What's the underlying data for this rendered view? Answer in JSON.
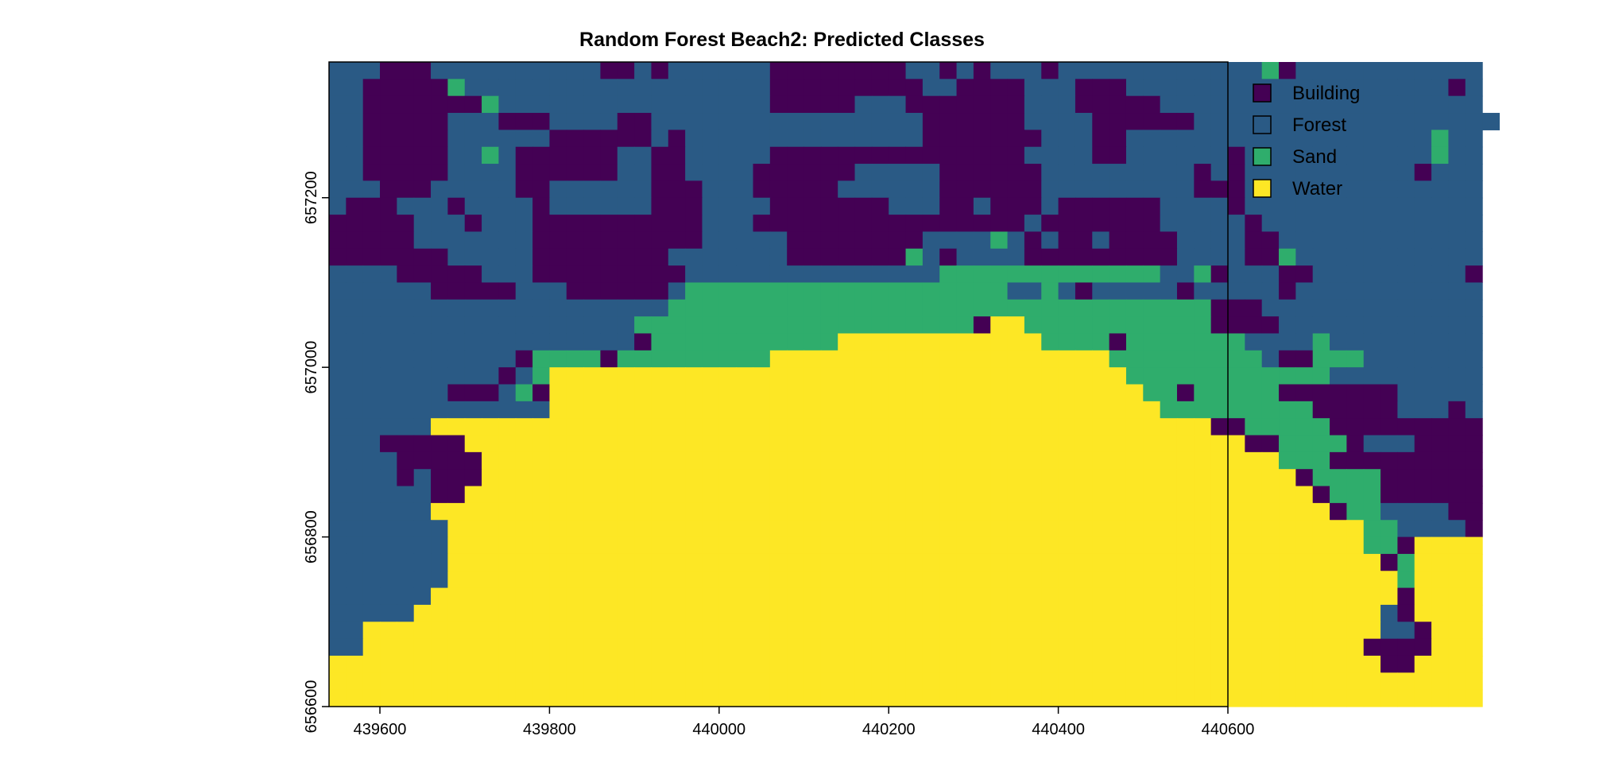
{
  "chart_data": {
    "type": "heatmap",
    "title": "Random Forest Beach2: Predicted Classes",
    "xlabel": "",
    "ylabel": "",
    "xlim": [
      439540,
      440600
    ],
    "ylim": [
      656600,
      657360
    ],
    "x_ticks": [
      "439600",
      "439800",
      "440000",
      "440200",
      "440400",
      "440600"
    ],
    "y_ticks": [
      "656600",
      "656800",
      "657000",
      "657200"
    ],
    "legend_position": "right",
    "cell_size": 20,
    "classes": [
      {
        "key": "B",
        "name": "Building",
        "color": "#440154"
      },
      {
        "key": "F",
        "name": "Forest",
        "color": "#2a5a85"
      },
      {
        "key": "S",
        "name": "Sand",
        "color": "#2fad6c"
      },
      {
        "key": "W",
        "name": "Water",
        "color": "#fde725"
      }
    ],
    "grid": [
      "FFFBBBFFFFFFFFFFBBFBFFFFFFBBBBBBBBFFBFBFFFBFFFFFFFFFFFFSBFFFFFFFFFFF",
      "FFBBBBBSFFFFFFFFFFFFFFFFFFBBBBBBBBBFFBBBBFFFBBBFFFFFFFFFFFFFFFFFFFBF",
      "FFBBBBBBBSFFFFFFFFFFFFFFFFBBBBBFFFBBBBBBBFFFBBBBBFFFFFFFFFFFFFFFFFFF",
      "FFBBBBBFFFBBBFFFFBBFFFFFFFFFFFFFFFFBBBBBBFFFFBBBBBBFFFFFFFFFFFFFFFFFF",
      "FFBBBBBFFFFFFBBBBBBFBFFFFFFFFFFFFFFBBBBBBBFFFBBFFFFFFFFFFFFFFFFFFSFF",
      "FFBBBBBFFSFBBBBBBFFBBFFFFFBBBBBBBBBBBBBBBFFFFBBFFFFFFBFFFFFFFFFFFSFF",
      "FFBBBBBFFFFBBBBBBFFBBFFFFBBBBBBFFFFFBBBBBBFFFFFFFFFBFBFFFFFFFFFFBFFF",
      "FFFBBBFFFFFBBFFFFFFBBBFFFBBBBBFFFFFFBBBBBBFFFFFFFFFBBBFFFFFFFFFFFFFF",
      "FBBBFFFBFFFFBFFFFFFBBBFFFFBBBBBBBFFFBBFBBBFBBBBBBFFFFBFFFFFFFFFFFFFF",
      "BBBBBFFFBFFFBBBBBBBBBBFFFBBBBBBBBBBBBBBBBFBBBBBBBFFFFFBFFFFFFFFFFFFF",
      "BBBBBFFFFFFFBBBBBBBBBBFFFFFBBBBBBBBFFFFSFBFBBFBBBBFFFFBBFFFFFFFFFFFF",
      "BBBBBBBFFFFFBBBBBBBBFFFFFFFBBBBBBBSFBFFFFBBBBBBBBBFFFFBBSFFFFFFFFFFF",
      "FFFFBBBBBFFFBBBBBBBBBFFFFFFFFFFFFFFFSSSSSSSSSSSSSFFSBFFFBBFFFFFFFFFB",
      "FFFFFFBBBBBFFFBBBBBBFSSSSSSSSSSSSSSSSSSSFFSFBFFFFFBFFFFFBFFFFFFFFFFF",
      "FFFFFFFFFFFFFFFFFFFFSSSSSSSSSSSSSSSSSSSSSSSSSSSSSSSSBBBFFFFFFFFFFFFF",
      "FFFFFFFFFFFFFFFFFFSSSSSSSSSSSSSSSSSSSSBWWSSSSSSSSSSSBBBBFFFFFFFFFFFF",
      "FFFFFFFFFFFFFFFFFFBSSSSSSSSSSSWWWWWWWWWWWWSSSSBSSSSSSSFFFFSFFFFFFFFF",
      "FFFFFFFFFFFBSSSSBSSSSSSSSSWWWWWWWWWWWWWWWWWWWWSSSSSSSSSFBBSSSFFFFFFF",
      "FFFFFFFFFFBFSWWWWWWWWWWWWWWWWWWWWWWWWWWWWWWWWWWSSSSSSSSSSSSFFFFFFFFF",
      "FFFFFFFBBBFSBWWWWWWWWWWWWWWWWWWWWWWWWWWWWWWWWWWWSSBSSSSSBBBBBBBFFFFF",
      "FFFFFFFFFFFFFWWWWWWWWWWWWWWWWWWWWWWWWWWWWWWWWWWWWSSSSSSSSSBBBBBFFFBF",
      "FFFFFFWWWWWWWWWWWWWWWWWWWWWWWWWWWWWWWWWWWWWWWWWWWWWWBBSSSSSBBBBBBBBB",
      "FFFBBBBBWWWWWWWWWWWWWWWWWWWWWWWWWWWWWWWWWWWWWWWWWWWWWWBBSSSSBFFFBBBB",
      "FFFFBBBBBWWWWWWWWWWWWWWWWWWWWWWWWWWWWWWWWWWWWWWWWWWWWWWWSSSBBBBBBBBB",
      "FFFFBFBBBWWWWWWWWWWWWWWWWWWWWWWWWWWWWWWWWWWWWWWWWWWWWWWWWBSSSSBBBBBB",
      "FFFFFFBBWWWWWWWWWWWWWWWWWWWWWWWWWWWWWWWWWWWWWWWWWWWWWWWWWWBSSSBBBBBB",
      "FFFFFFWWWWWWWWWWWWWWWWWWWWWWWWWWWWWWWWWWWWWWWWWWWWWWWWWWWWWBSSFFFFBB",
      "FFFFFFFWWWWWWWWWWWWWWWWWWWWWWWWWWWWWWWWWWWWWWWWWWWWWWWWWWWWWWSSFFFFB",
      "FFFFFFFWWWWWWWWWWWWWWWWWWWWWWWWWWWWWWWWWWWWWWWWWWWWWWWWWWWWWWSSBWWWW",
      "FFFFFFFWWWWWWWWWWWWWWWWWWWWWWWWWWWWWWWWWWWWWWWWWWWWWWWWWWWWWWWBSWWWW",
      "FFFFFFFWWWWWWWWWWWWWWWWWWWWWWWWWWWWWWWWWWWWWWWWWWWWWWWWWWWWWWWWSWWWW",
      "FFFFFFWWWWWWWWWWWWWWWWWWWWWWWWWWWWWWWWWWWWWWWWWWWWWWWWWWWWWWWWWBWWWW",
      "FFFFFWWWWWWWWWWWWWWWWWWWWWWWWWWWWWWWWWWWWWWWWWWWWWWWWWWWWWWWWWFBWWWW",
      "FFWWWWWWWWWWWWWWWWWWWWWWWWWWWWWWWWWWWWWWWWWWWWWWWWWWWWWWWWWWWWFFBWWW",
      "FFWWWWWWWWWWWWWWWWWWWWWWWWWWWWWWWWWWWWWWWWWWWWWWWWWWWWWWWWWWWBBBBWWW",
      "WWWWWWWWWWWWWWWWWWWWWWWWWWWWWWWWWWWWWWWWWWWWWWWWWWWWWWWWWWWWWWBBWWWW",
      "WWWWWWWWWWWWWWWWWWWWWWWWWWWWWWWWWWWWWWWWWWWWWWWWWWWWWWWWWWWWWWWWWWWW",
      "WWWWWWWWWWWWWWWWWWWWWWWWWWWWWWWWWWWWWWWWWWWWWWWWWWWWWWWWWWWWWWWWWWWW"
    ]
  }
}
